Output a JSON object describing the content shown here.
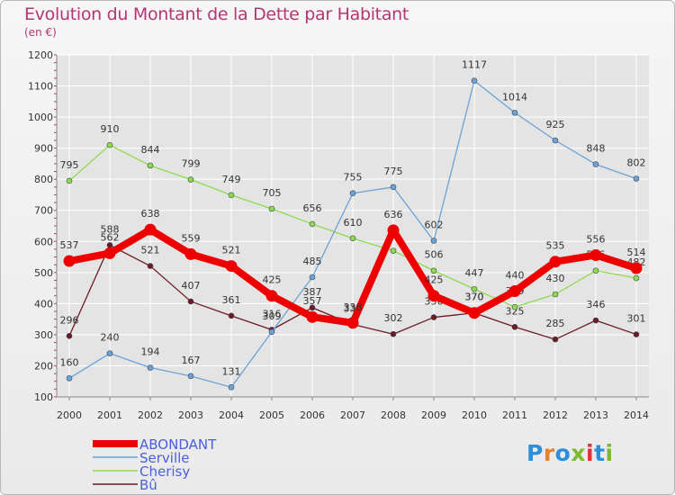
{
  "title": "Evolution du Montant de la Dette par Habitant",
  "subtitle": "(en €)",
  "logo": {
    "text": "Proxiti",
    "colors": [
      "#2e8fd8",
      "#e7832a",
      "#2e8fd8",
      "#7cbb2f",
      "#e0303a",
      "#2e8fd8",
      "#7cbb2f"
    ]
  },
  "colors": {
    "title": "#b43672",
    "legend_text": "#4a5fdb",
    "grid": "#ffffff",
    "axis": "#888888"
  },
  "chart_data": {
    "type": "line",
    "title": "Evolution du Montant de la Dette par Habitant",
    "subtitle": "(en €)",
    "xlabel": "",
    "ylabel": "",
    "x": [
      "2000",
      "2001",
      "2002",
      "2003",
      "2004",
      "2005",
      "2006",
      "2007",
      "2008",
      "2009",
      "2010",
      "2011",
      "2012",
      "2013",
      "2014"
    ],
    "ylim": [
      100,
      1200
    ],
    "yticks": [
      100,
      200,
      300,
      400,
      500,
      600,
      700,
      800,
      900,
      1000,
      1100,
      1200
    ],
    "grid": true,
    "legend_position": "bottom-left",
    "series": [
      {
        "name": "ABONDANT",
        "color": "#ee0000",
        "values": [
          537,
          562,
          638,
          559,
          521,
          425,
          357,
          338,
          636,
          425,
          370,
          440,
          535,
          556,
          514
        ],
        "labels": [
          "537",
          "562",
          "638",
          "559",
          "521",
          "425",
          "357",
          "338",
          "636",
          "425",
          "370",
          "440",
          "535",
          "556",
          "514"
        ]
      },
      {
        "name": "Serville",
        "color": "#6ba3d6",
        "values": [
          160,
          240,
          194,
          167,
          131,
          309,
          485,
          755,
          775,
          602,
          1117,
          1014,
          925,
          848,
          802
        ],
        "labels": [
          "160",
          "240",
          "194",
          "167",
          "131",
          "309",
          "485",
          "755",
          "775",
          "602",
          "1117",
          "1014",
          "925",
          "848",
          "802"
        ]
      },
      {
        "name": "Cherisy",
        "color": "#8edb4e",
        "values": [
          795,
          910,
          844,
          799,
          749,
          705,
          656,
          610,
          570,
          506,
          447,
          389,
          430,
          506,
          482
        ],
        "labels": [
          "795",
          "910",
          "844",
          "799",
          "749",
          "705",
          "656",
          "610",
          "",
          "506",
          "447",
          "389",
          "430",
          "506",
          "482"
        ]
      },
      {
        "name": "Bû",
        "color": "#6b1b24",
        "values": [
          296,
          588,
          521,
          407,
          361,
          316,
          387,
          333,
          302,
          356,
          370,
          325,
          285,
          346,
          301
        ],
        "labels": [
          "296",
          "588",
          "521",
          "407",
          "361",
          "316",
          "387",
          "333",
          "302",
          "356",
          "370",
          "325",
          "285",
          "346",
          "301"
        ]
      }
    ]
  }
}
